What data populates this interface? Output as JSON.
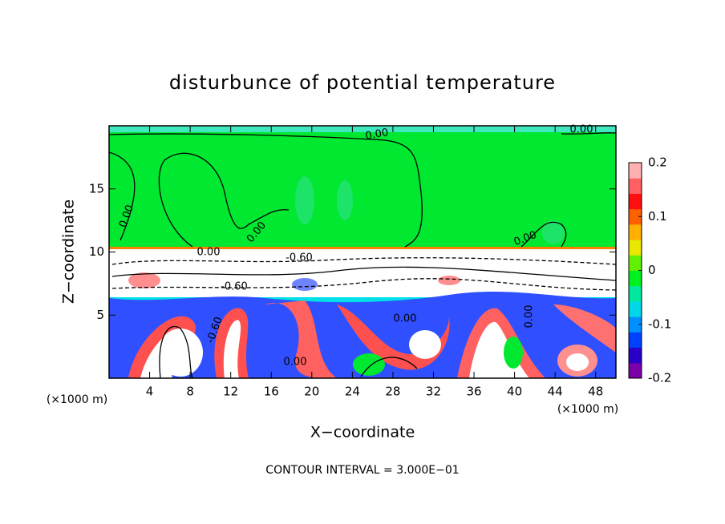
{
  "chart_data": {
    "type": "contour",
    "title": "disturbunce of potential temperature",
    "x_label": "X−coordinate",
    "y_label": "Z−coordinate",
    "x_unit": "(×1000 m)",
    "y_unit": "(×1000 m)",
    "footer": "CONTOUR INTERVAL = 3.000E−01",
    "xlim": [
      0,
      50
    ],
    "xticks": [
      4,
      8,
      12,
      16,
      20,
      24,
      28,
      32,
      36,
      40,
      44,
      48
    ],
    "ylim": [
      0,
      20
    ],
    "yticks": [
      5,
      10,
      15
    ],
    "colorbar": {
      "lim": [
        -0.2,
        0.2
      ],
      "ticks": [
        -0.2,
        -0.1,
        0,
        0.1,
        0.2
      ],
      "colors": [
        "#7a00a8",
        "#2a00c8",
        "#0040ff",
        "#0090ff",
        "#00d8e8",
        "#00e8a0",
        "#00f020",
        "#60f000",
        "#e8e800",
        "#ffb000",
        "#ff6000",
        "#ff1010",
        "#ff6060",
        "#ffb0b0"
      ]
    },
    "contour_labels": [
      "0.00",
      "0.00",
      "0.00",
      "0.00",
      "0.00",
      "0.00",
      "0.00",
      "0.00",
      "-0.60",
      "-0.60",
      "-0.60",
      "0.00"
    ]
  }
}
